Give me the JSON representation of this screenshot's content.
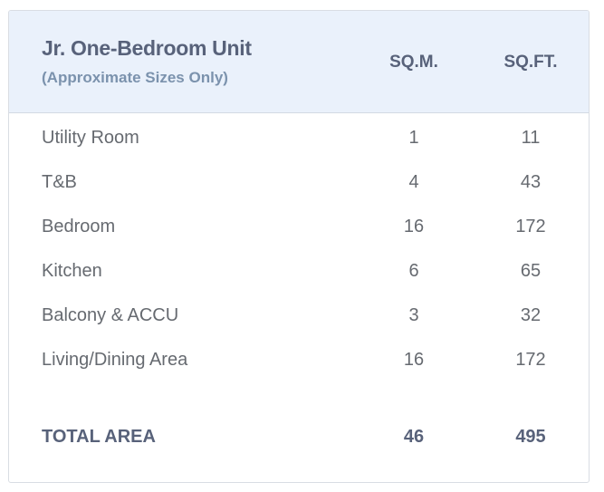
{
  "header": {
    "title": "Jr. One-Bedroom Unit",
    "subtitle": "(Approximate Sizes Only)",
    "col_sqm": "SQ.M.",
    "col_sqft": "SQ.FT."
  },
  "rows": [
    {
      "label": "Utility Room",
      "sqm": "1",
      "sqft": "11"
    },
    {
      "label": "T&B",
      "sqm": "4",
      "sqft": "43"
    },
    {
      "label": "Bedroom",
      "sqm": "16",
      "sqft": "172"
    },
    {
      "label": "Kitchen",
      "sqm": "6",
      "sqft": "65"
    },
    {
      "label": "Balcony & ACCU",
      "sqm": "3",
      "sqft": "32"
    },
    {
      "label": "Living/Dining Area",
      "sqm": "16",
      "sqft": "172"
    }
  ],
  "total": {
    "label": "TOTAL AREA",
    "sqm": "46",
    "sqft": "495"
  },
  "colors": {
    "header_bg": "#eaf1fb",
    "heading_text": "#58627a",
    "subtitle_text": "#7b92ad",
    "body_text": "#666a70"
  }
}
